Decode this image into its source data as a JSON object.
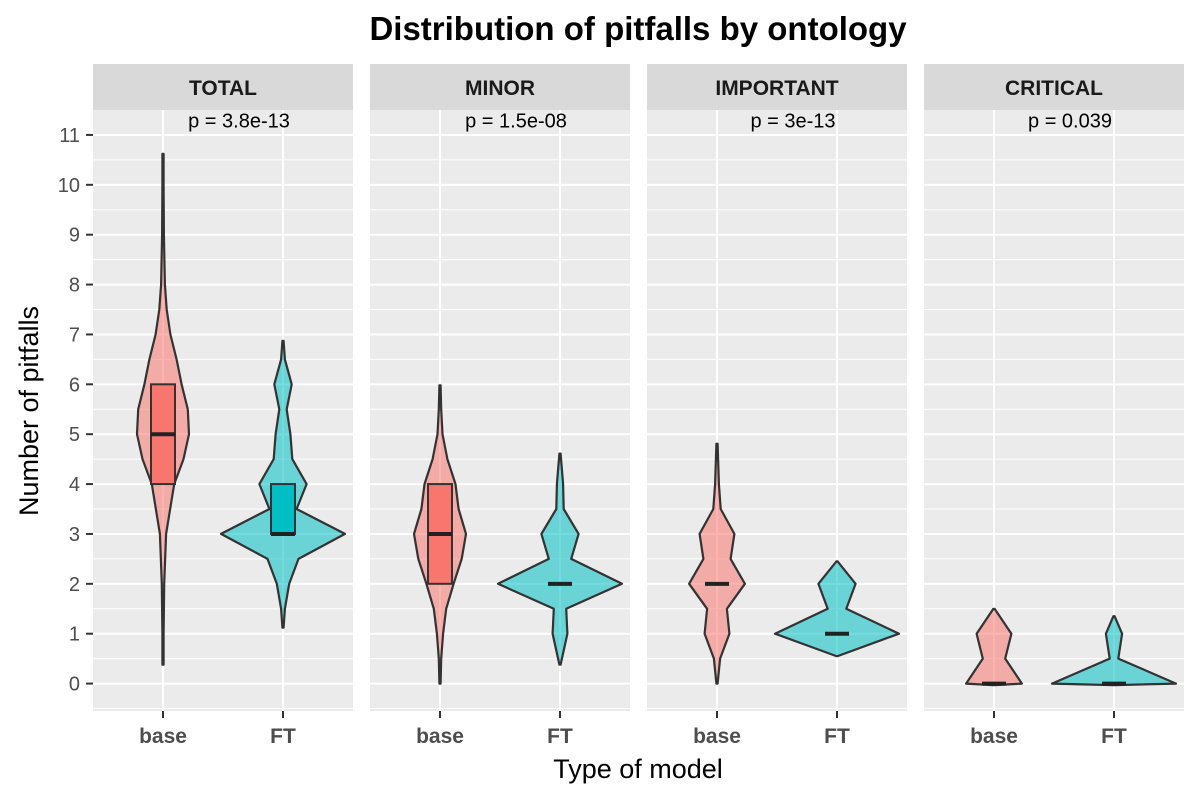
{
  "chart_data": {
    "type": "violin",
    "title": "Distribution of pitfalls by ontology",
    "xlabel": "Type of model",
    "ylabel": "Number of pitfalls",
    "ylim": [
      -0.55,
      11.5
    ],
    "y_ticks": [
      0,
      1,
      2,
      3,
      4,
      5,
      6,
      7,
      8,
      9,
      10,
      11
    ],
    "categories": [
      "base",
      "FT"
    ],
    "grid": true,
    "colors": {
      "base": "#F8766D",
      "FT": "#00BFC4",
      "panel_bg": "#EBEBEB",
      "strip_bg": "#D9D9D9",
      "outline": "#333333"
    },
    "panels": [
      {
        "name": "TOTAL",
        "p_label": "p = 3.8e-13",
        "groups": [
          {
            "category": "base",
            "box": {
              "q1": 4,
              "median": 5,
              "q3": 6
            },
            "violin": [
              [
                0.38,
                0.01
              ],
              [
                1,
                0.01
              ],
              [
                2,
                0.02
              ],
              [
                3,
                0.05
              ],
              [
                4,
                0.18
              ],
              [
                4.5,
                0.33
              ],
              [
                5,
                0.42
              ],
              [
                5.5,
                0.4
              ],
              [
                6,
                0.3
              ],
              [
                6.5,
                0.22
              ],
              [
                7,
                0.12
              ],
              [
                7.5,
                0.06
              ],
              [
                8,
                0.03
              ],
              [
                9,
                0.015
              ],
              [
                10,
                0.01
              ],
              [
                10.62,
                0.01
              ]
            ]
          },
          {
            "category": "FT",
            "box": {
              "q1": 3,
              "median": 3,
              "q3": 4
            },
            "violin": [
              [
                1.12,
                0.01
              ],
              [
                1.5,
                0.03
              ],
              [
                2,
                0.1
              ],
              [
                2.5,
                0.25
              ],
              [
                3,
                1.0
              ],
              [
                3.5,
                0.22
              ],
              [
                4,
                0.38
              ],
              [
                4.5,
                0.15
              ],
              [
                5,
                0.12
              ],
              [
                5.5,
                0.06
              ],
              [
                6,
                0.14
              ],
              [
                6.5,
                0.03
              ],
              [
                6.87,
                0.01
              ]
            ]
          }
        ]
      },
      {
        "name": "MINOR",
        "p_label": "p = 1.5e-08",
        "groups": [
          {
            "category": "base",
            "box": {
              "q1": 2,
              "median": 3,
              "q3": 4
            },
            "violin": [
              [
                0,
                0.01
              ],
              [
                0.5,
                0.02
              ],
              [
                1,
                0.05
              ],
              [
                1.5,
                0.1
              ],
              [
                2,
                0.22
              ],
              [
                2.5,
                0.35
              ],
              [
                3,
                0.42
              ],
              [
                3.5,
                0.3
              ],
              [
                4,
                0.25
              ],
              [
                4.5,
                0.12
              ],
              [
                5,
                0.04
              ],
              [
                5.5,
                0.02
              ],
              [
                5.98,
                0.01
              ]
            ]
          },
          {
            "category": "FT",
            "box": {
              "q1": 2,
              "median": 2,
              "q3": 2
            },
            "violin": [
              [
                0.38,
                0.01
              ],
              [
                1,
                0.12
              ],
              [
                1.5,
                0.1
              ],
              [
                2,
                1.0
              ],
              [
                2.5,
                0.18
              ],
              [
                3,
                0.3
              ],
              [
                3.5,
                0.06
              ],
              [
                4,
                0.05
              ],
              [
                4.61,
                0.01
              ]
            ]
          }
        ]
      },
      {
        "name": "IMPORTANT",
        "p_label": "p = 3e-13",
        "groups": [
          {
            "category": "base",
            "box": {
              "q1": 2,
              "median": 2,
              "q3": 2
            },
            "violin": [
              [
                0,
                0.01
              ],
              [
                0.5,
                0.05
              ],
              [
                1,
                0.2
              ],
              [
                1.5,
                0.16
              ],
              [
                2,
                0.45
              ],
              [
                2.5,
                0.22
              ],
              [
                3,
                0.28
              ],
              [
                3.5,
                0.06
              ],
              [
                4,
                0.03
              ],
              [
                4.81,
                0.01
              ]
            ]
          },
          {
            "category": "FT",
            "box": {
              "q1": 1,
              "median": 1,
              "q3": 1
            },
            "violin": [
              [
                0.55,
                0.01
              ],
              [
                1,
                1.0
              ],
              [
                1.5,
                0.15
              ],
              [
                2,
                0.3
              ],
              [
                2.45,
                0.01
              ]
            ]
          }
        ]
      },
      {
        "name": "CRITICAL",
        "p_label": "p = 0.039",
        "groups": [
          {
            "category": "base",
            "box": {
              "q1": 0,
              "median": 0,
              "q3": 0
            },
            "violin": [
              [
                -0.03,
                0.01
              ],
              [
                0,
                0.45
              ],
              [
                0.5,
                0.18
              ],
              [
                1,
                0.28
              ],
              [
                1.5,
                0.01
              ]
            ]
          },
          {
            "category": "FT",
            "box": {
              "q1": 0,
              "median": 0,
              "q3": 0
            },
            "violin": [
              [
                -0.03,
                0.01
              ],
              [
                0,
                1.0
              ],
              [
                0.5,
                0.07
              ],
              [
                1,
                0.13
              ],
              [
                1.35,
                0.01
              ]
            ]
          }
        ]
      }
    ]
  }
}
